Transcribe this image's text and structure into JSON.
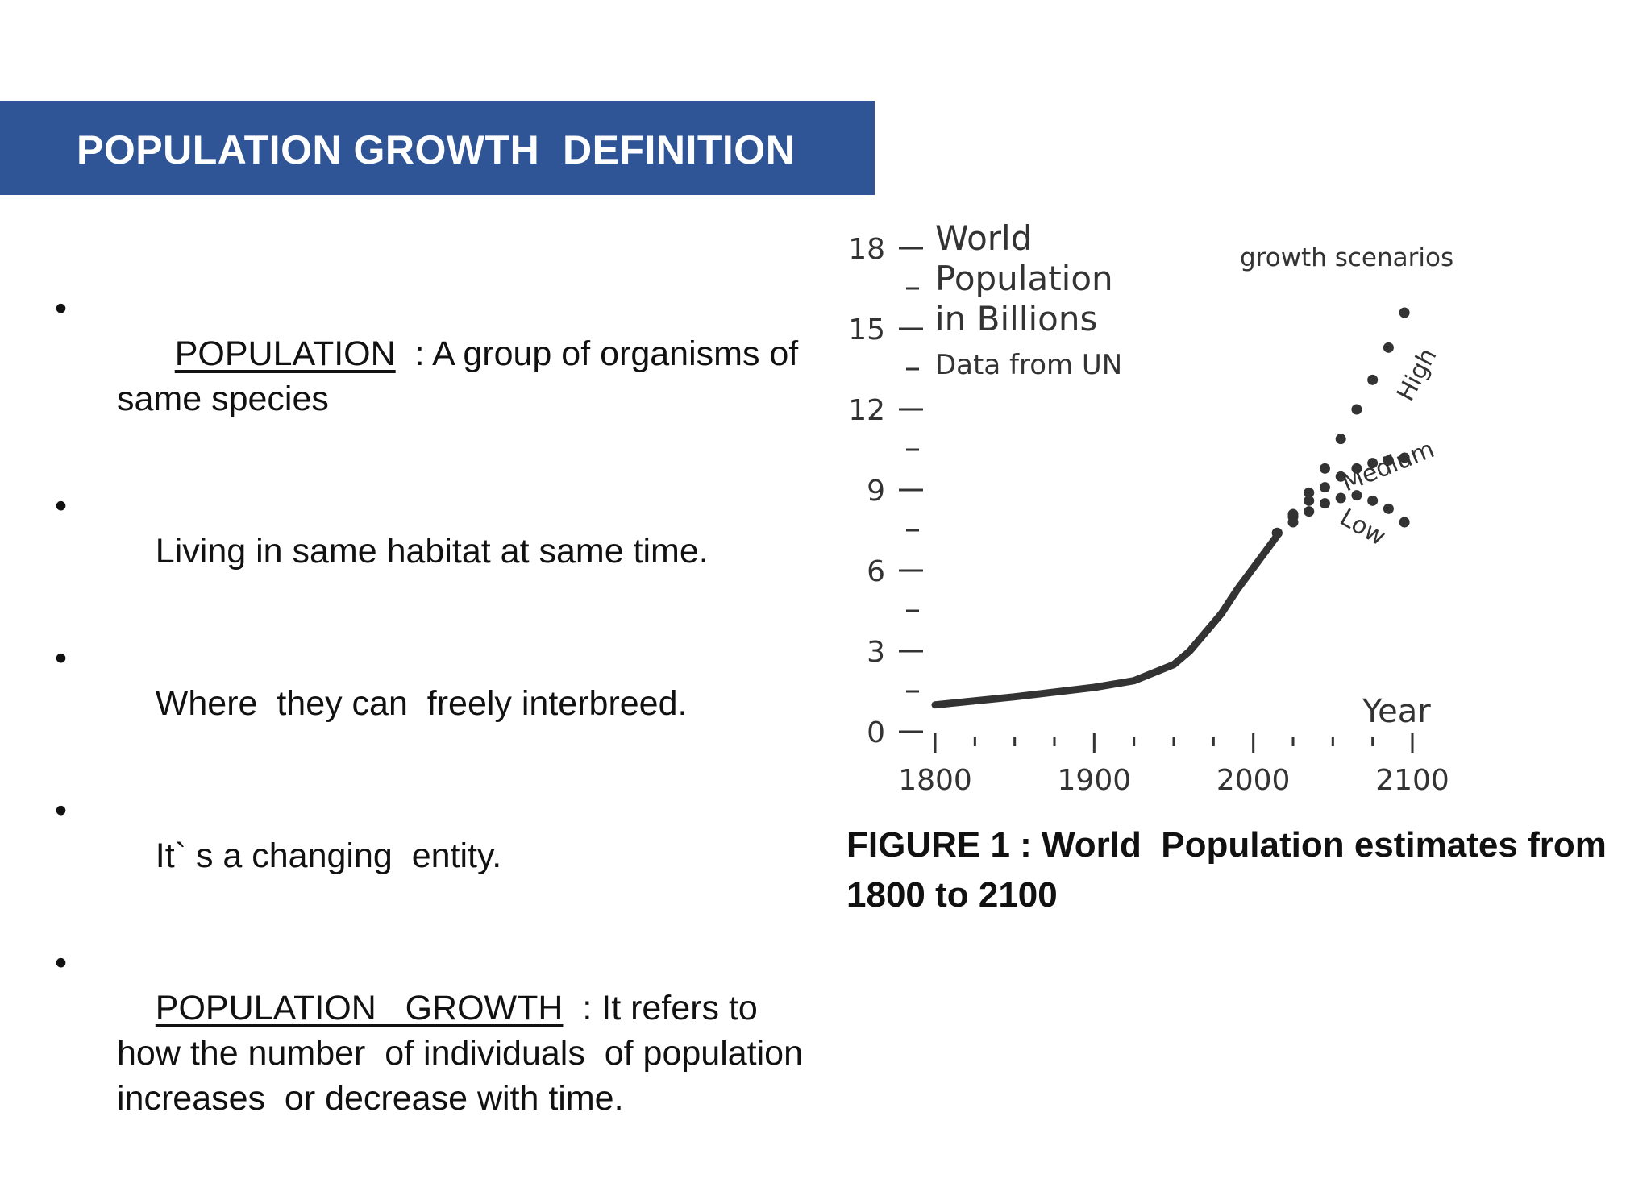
{
  "slide": {
    "title": "POPULATION GROWTH  DEFINITION",
    "accent_color": "#2f5597",
    "bullets": [
      {
        "dot": "•",
        "term": "POPULATION",
        "rest": "  : A group of organisms of same species"
      },
      {
        "dot": "•",
        "text": "Living in same habitat at same time."
      },
      {
        "dot": "•",
        "text": "Where  they can  freely interbreed."
      },
      {
        "dot": "•",
        "text": "It` s a changing  entity."
      },
      {
        "dot": "•",
        "term": "POPULATION   GROWTH",
        "rest": "  : It refers to how the number  of individuals  of population  increases  or decrease with time."
      }
    ],
    "caption": "FIGURE 1 : World  Population estimates from 1800 to 2100"
  },
  "chart_data": {
    "type": "line",
    "title_lines": [
      "World",
      "Population",
      "in Billions",
      "Data from UN"
    ],
    "xlabel": "Year",
    "legend_title": "growth scenarios",
    "x_ticks": [
      1800,
      1900,
      2000,
      2100
    ],
    "y_ticks": [
      0,
      3,
      6,
      9,
      12,
      15,
      18
    ],
    "xlim": [
      1800,
      2100
    ],
    "ylim": [
      0,
      18
    ],
    "series": [
      {
        "name": "",
        "style": "solid",
        "x": [
          1800,
          1850,
          1900,
          1925,
          1950,
          1960,
          1970,
          1980,
          1990,
          2000,
          2015
        ],
        "y": [
          1.0,
          1.3,
          1.65,
          1.9,
          2.5,
          3.0,
          3.7,
          4.4,
          5.3,
          6.1,
          7.3
        ]
      },
      {
        "name": "High",
        "style": "dotted",
        "x": [
          2015,
          2025,
          2035,
          2045,
          2055,
          2065,
          2075,
          2085,
          2095
        ],
        "y": [
          7.4,
          8.1,
          8.9,
          9.8,
          10.9,
          12.0,
          13.1,
          14.3,
          15.6
        ]
      },
      {
        "name": "Medium",
        "style": "dotted",
        "x": [
          2015,
          2025,
          2035,
          2045,
          2055,
          2065,
          2075,
          2085,
          2095
        ],
        "y": [
          7.4,
          8.0,
          8.6,
          9.1,
          9.5,
          9.8,
          10.0,
          10.1,
          10.2
        ]
      },
      {
        "name": "Low",
        "style": "dotted",
        "x": [
          2015,
          2025,
          2035,
          2045,
          2055,
          2065,
          2075,
          2085,
          2095
        ],
        "y": [
          7.4,
          7.8,
          8.2,
          8.5,
          8.7,
          8.8,
          8.6,
          8.3,
          7.8
        ]
      }
    ]
  }
}
